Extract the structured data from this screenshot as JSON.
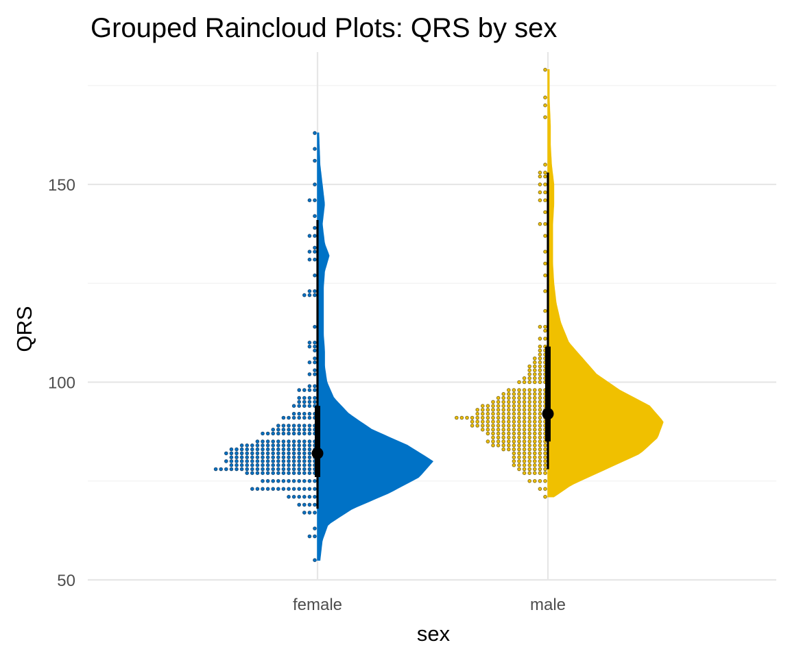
{
  "chart_data": {
    "type": "raincloud",
    "title": "Grouped Raincloud Plots: QRS by sex",
    "xlabel": "sex",
    "ylabel": "QRS",
    "ylim": [
      50,
      180
    ],
    "yticks": [
      50,
      100,
      150
    ],
    "grid": true,
    "legend": "none",
    "categories": [
      "female",
      "male"
    ],
    "groups": [
      {
        "name": "female",
        "color": "#0072C6",
        "dot_fill": "#0072C6",
        "dot_stroke": "#1F4E79",
        "range": [
          55,
          163
        ],
        "whisker": [
          68,
          141
        ],
        "iqr": [
          76,
          94
        ],
        "median": 82,
        "density_peak": 80,
        "density_profile": [
          [
            55,
            0.02
          ],
          [
            60,
            0.04
          ],
          [
            64,
            0.09
          ],
          [
            68,
            0.3
          ],
          [
            72,
            0.62
          ],
          [
            76,
            0.88
          ],
          [
            80,
            1.0
          ],
          [
            84,
            0.78
          ],
          [
            88,
            0.47
          ],
          [
            92,
            0.27
          ],
          [
            96,
            0.14
          ],
          [
            100,
            0.08
          ],
          [
            104,
            0.06
          ],
          [
            108,
            0.06
          ],
          [
            112,
            0.05
          ],
          [
            116,
            0.05
          ],
          [
            120,
            0.05
          ],
          [
            124,
            0.05
          ],
          [
            128,
            0.06
          ],
          [
            132,
            0.1
          ],
          [
            135,
            0.06
          ],
          [
            140,
            0.04
          ],
          [
            145,
            0.06
          ],
          [
            150,
            0.04
          ],
          [
            155,
            0.02
          ],
          [
            163,
            0.01
          ]
        ],
        "dot_counts": [
          [
            55,
            1
          ],
          [
            61,
            2
          ],
          [
            63,
            1
          ],
          [
            67,
            3
          ],
          [
            69,
            4
          ],
          [
            71,
            6
          ],
          [
            73,
            13
          ],
          [
            75,
            11
          ],
          [
            77,
            14
          ],
          [
            78,
            20
          ],
          [
            79,
            17
          ],
          [
            80,
            18
          ],
          [
            81,
            17
          ],
          [
            82,
            18
          ],
          [
            83,
            17
          ],
          [
            84,
            15
          ],
          [
            85,
            12
          ],
          [
            87,
            11
          ],
          [
            88,
            9
          ],
          [
            89,
            8
          ],
          [
            91,
            7
          ],
          [
            92,
            5
          ],
          [
            94,
            5
          ],
          [
            95,
            4
          ],
          [
            96,
            4
          ],
          [
            98,
            4
          ],
          [
            99,
            2
          ],
          [
            102,
            2
          ],
          [
            103,
            1
          ],
          [
            105,
            2
          ],
          [
            106,
            1
          ],
          [
            108,
            1
          ],
          [
            109,
            2
          ],
          [
            110,
            2
          ],
          [
            114,
            1
          ],
          [
            122,
            3
          ],
          [
            123,
            2
          ],
          [
            127,
            1
          ],
          [
            131,
            2
          ],
          [
            133,
            2
          ],
          [
            134,
            1
          ],
          [
            137,
            2
          ],
          [
            139,
            1
          ],
          [
            142,
            1
          ],
          [
            146,
            2
          ],
          [
            150,
            1
          ],
          [
            156,
            1
          ],
          [
            159,
            1
          ],
          [
            163,
            1
          ]
        ]
      },
      {
        "name": "male",
        "color": "#F0C000",
        "dot_fill": "#F0C000",
        "dot_stroke": "#8A7420",
        "range": [
          71,
          179
        ],
        "whisker": [
          78,
          153
        ],
        "iqr": [
          85,
          109
        ],
        "median": 92,
        "density_peak": 91,
        "density_profile": [
          [
            71,
            0.05
          ],
          [
            74,
            0.2
          ],
          [
            78,
            0.5
          ],
          [
            82,
            0.8
          ],
          [
            86,
            0.95
          ],
          [
            90,
            1.0
          ],
          [
            94,
            0.88
          ],
          [
            98,
            0.62
          ],
          [
            102,
            0.42
          ],
          [
            106,
            0.3
          ],
          [
            110,
            0.18
          ],
          [
            115,
            0.11
          ],
          [
            120,
            0.07
          ],
          [
            125,
            0.05
          ],
          [
            130,
            0.04
          ],
          [
            135,
            0.04
          ],
          [
            140,
            0.04
          ],
          [
            145,
            0.05
          ],
          [
            150,
            0.05
          ],
          [
            155,
            0.03
          ],
          [
            160,
            0.02
          ],
          [
            165,
            0.02
          ],
          [
            172,
            0.01
          ],
          [
            179,
            0.01
          ]
        ],
        "dot_counts": [
          [
            71,
            1
          ],
          [
            73,
            2
          ],
          [
            75,
            4
          ],
          [
            77,
            5
          ],
          [
            78,
            6
          ],
          [
            79,
            7
          ],
          [
            80,
            7
          ],
          [
            81,
            7
          ],
          [
            82,
            7
          ],
          [
            83,
            9
          ],
          [
            84,
            11
          ],
          [
            85,
            12
          ],
          [
            86,
            11
          ],
          [
            87,
            12
          ],
          [
            88,
            13
          ],
          [
            89,
            15
          ],
          [
            90,
            15
          ],
          [
            91,
            18
          ],
          [
            92,
            14
          ],
          [
            93,
            14
          ],
          [
            94,
            13
          ],
          [
            95,
            11
          ],
          [
            96,
            10
          ],
          [
            97,
            9
          ],
          [
            98,
            8
          ],
          [
            100,
            6
          ],
          [
            101,
            5
          ],
          [
            102,
            4
          ],
          [
            103,
            4
          ],
          [
            104,
            4
          ],
          [
            105,
            3
          ],
          [
            106,
            3
          ],
          [
            107,
            2
          ],
          [
            108,
            2
          ],
          [
            109,
            2
          ],
          [
            111,
            2
          ],
          [
            113,
            1
          ],
          [
            114,
            2
          ],
          [
            118,
            1
          ],
          [
            123,
            1
          ],
          [
            127,
            1
          ],
          [
            130,
            1
          ],
          [
            133,
            1
          ],
          [
            137,
            1
          ],
          [
            140,
            2
          ],
          [
            143,
            1
          ],
          [
            146,
            2
          ],
          [
            148,
            2
          ],
          [
            150,
            2
          ],
          [
            152,
            2
          ],
          [
            153,
            2
          ],
          [
            155,
            1
          ],
          [
            167,
            1
          ],
          [
            170,
            1
          ],
          [
            172,
            1
          ],
          [
            179,
            1
          ]
        ]
      }
    ]
  }
}
